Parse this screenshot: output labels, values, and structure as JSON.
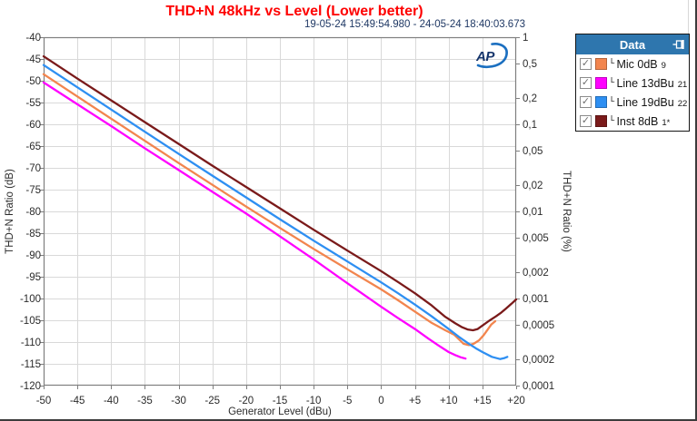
{
  "title": "THD+N 48kHz vs Level (Lower better)",
  "subtitle": "19-05-24 15:49:54.980 - 24-05-24 18:40:03.673",
  "logo_text": "AP",
  "colors": {
    "title": "#fe0000",
    "subtitle": "#1f3864",
    "grid": "#d9d9d9",
    "plot_border": "#7f7f7f",
    "tick_text": "#2b2b2b",
    "legend_header_bg": "#2e76ae",
    "logo_swoosh": "#1b6fc0",
    "logo_text": "#16356b"
  },
  "legend": {
    "header": "Data",
    "items": [
      {
        "channel": "L",
        "label": "Mic 0dB",
        "suffix": "9",
        "color": "#f2854e",
        "checked": true
      },
      {
        "channel": "L",
        "label": "Line 13dBu",
        "suffix": "21",
        "color": "#ff00ff",
        "checked": true
      },
      {
        "channel": "L",
        "label": "Line 19dBu",
        "suffix": "22",
        "color": "#2e8ff2",
        "checked": true
      },
      {
        "channel": "L",
        "label": "Inst 8dB",
        "suffix": "1*",
        "color": "#7a1a1a",
        "checked": true
      }
    ]
  },
  "chart_data": {
    "type": "line",
    "title": "THD+N 48kHz vs Level (Lower better)",
    "subtitle": "19-05-24 15:49:54.980 - 24-05-24 18:40:03.673",
    "xlabel": "Generator Level (dBu)",
    "ylabel_left": "THD+N Ratio (dB)",
    "ylabel_right": "THD+N Ratio (%)",
    "xlim": [
      -50,
      20
    ],
    "ylim_left": [
      -120,
      -40
    ],
    "grid": true,
    "legend_position": "right",
    "x_ticks": [
      -50,
      -45,
      -40,
      -35,
      -30,
      -25,
      -20,
      -15,
      -10,
      -5,
      0,
      5,
      10,
      15,
      20
    ],
    "x_tick_labels": [
      "-50",
      "-45",
      "-40",
      "-35",
      "-30",
      "-25",
      "-20",
      "-15",
      "-10",
      "-5",
      "0",
      "+5",
      "+10",
      "+15",
      "+20"
    ],
    "y_left_ticks": [
      -40,
      -45,
      -50,
      -55,
      -60,
      -65,
      -70,
      -75,
      -80,
      -85,
      -90,
      -95,
      -100,
      -105,
      -110,
      -115,
      -120
    ],
    "y_left_tick_labels": [
      "-40",
      "-45",
      "-50",
      "-55",
      "-60",
      "-65",
      "-70",
      "-75",
      "-80",
      "-85",
      "-90",
      "-95",
      "-100",
      "-105",
      "-110",
      "-115",
      "-120"
    ],
    "y_right_ticks": [
      {
        "label": "1",
        "percent": 1
      },
      {
        "label": "0,5",
        "percent": 0.5
      },
      {
        "label": "0,2",
        "percent": 0.2
      },
      {
        "label": "0,1",
        "percent": 0.1
      },
      {
        "label": "0,05",
        "percent": 0.05
      },
      {
        "label": "0,02",
        "percent": 0.02
      },
      {
        "label": "0,01",
        "percent": 0.01
      },
      {
        "label": "0,005",
        "percent": 0.005
      },
      {
        "label": "0,002",
        "percent": 0.002
      },
      {
        "label": "0,001",
        "percent": 0.001
      },
      {
        "label": "0,0005",
        "percent": 0.0005
      },
      {
        "label": "0,0002",
        "percent": 0.0002
      },
      {
        "label": "0,0001",
        "percent": 0.0001
      }
    ],
    "series": [
      {
        "name": "Mic 0dB",
        "channel": "L",
        "color": "#f2854e",
        "points": [
          [
            -50,
            -48.5
          ],
          [
            -45,
            -53.6
          ],
          [
            -40,
            -58.7
          ],
          [
            -35,
            -63.8
          ],
          [
            -30,
            -68.9
          ],
          [
            -25,
            -73.9
          ],
          [
            -20,
            -78.9
          ],
          [
            -15,
            -83.8
          ],
          [
            -10,
            -88.6
          ],
          [
            -5,
            -93.3
          ],
          [
            0,
            -97.9
          ],
          [
            2.5,
            -100.4
          ],
          [
            5,
            -103.0
          ],
          [
            7.5,
            -105.6
          ],
          [
            9.5,
            -107.3
          ],
          [
            10.8,
            -108.3
          ],
          [
            12.2,
            -110.4
          ],
          [
            13,
            -110.7
          ],
          [
            13.7,
            -110.4
          ],
          [
            14.5,
            -109.6
          ],
          [
            15.2,
            -108.4
          ],
          [
            15.8,
            -107.1
          ],
          [
            16.3,
            -106.0
          ],
          [
            16.9,
            -105.2
          ]
        ]
      },
      {
        "name": "Line 13dBu",
        "channel": "L",
        "color": "#ff00ff",
        "points": [
          [
            -50,
            -50.4
          ],
          [
            -45,
            -55.4
          ],
          [
            -40,
            -60.4
          ],
          [
            -35,
            -65.5
          ],
          [
            -30,
            -70.5
          ],
          [
            -25,
            -75.5
          ],
          [
            -20,
            -80.5
          ],
          [
            -15,
            -85.7
          ],
          [
            -10,
            -91.0
          ],
          [
            -5,
            -96.5
          ],
          [
            0,
            -101.9
          ],
          [
            2.5,
            -104.5
          ],
          [
            5,
            -107.0
          ],
          [
            7,
            -109.2
          ],
          [
            8.5,
            -110.8
          ],
          [
            10,
            -112.3
          ],
          [
            11,
            -113.0
          ],
          [
            11.8,
            -113.5
          ],
          [
            12.5,
            -113.8
          ]
        ]
      },
      {
        "name": "Line 19dBu",
        "channel": "L",
        "color": "#2e8ff2",
        "points": [
          [
            -50,
            -46.4
          ],
          [
            -45,
            -51.5
          ],
          [
            -40,
            -56.6
          ],
          [
            -35,
            -61.7
          ],
          [
            -30,
            -66.8
          ],
          [
            -25,
            -71.8
          ],
          [
            -20,
            -76.8
          ],
          [
            -15,
            -81.8
          ],
          [
            -10,
            -86.7
          ],
          [
            -5,
            -91.5
          ],
          [
            0,
            -96.3
          ],
          [
            2.5,
            -98.8
          ],
          [
            5,
            -101.4
          ],
          [
            7.5,
            -104.1
          ],
          [
            10,
            -107.0
          ],
          [
            11.5,
            -108.8
          ],
          [
            12.9,
            -110.3
          ],
          [
            14,
            -111.4
          ],
          [
            15,
            -112.3
          ],
          [
            16.4,
            -113.4
          ],
          [
            17.6,
            -113.9
          ],
          [
            18.2,
            -113.7
          ],
          [
            18.7,
            -113.4
          ]
        ]
      },
      {
        "name": "Inst 8dB",
        "channel": "L",
        "color": "#7a1a1a",
        "points": [
          [
            -50,
            -44.4
          ],
          [
            -45,
            -49.5
          ],
          [
            -40,
            -54.5
          ],
          [
            -35,
            -59.5
          ],
          [
            -30,
            -64.5
          ],
          [
            -25,
            -69.5
          ],
          [
            -20,
            -74.4
          ],
          [
            -15,
            -79.3
          ],
          [
            -10,
            -84.2
          ],
          [
            -5,
            -89.0
          ],
          [
            0,
            -93.7
          ],
          [
            2.5,
            -96.2
          ],
          [
            5,
            -98.8
          ],
          [
            7.5,
            -101.6
          ],
          [
            9.5,
            -104.2
          ],
          [
            11,
            -105.7
          ],
          [
            12,
            -106.6
          ],
          [
            12.8,
            -107.1
          ],
          [
            13.6,
            -107.3
          ],
          [
            14.3,
            -107.0
          ],
          [
            15,
            -106.2
          ],
          [
            16,
            -105.1
          ],
          [
            17,
            -104.1
          ],
          [
            17.8,
            -103.2
          ],
          [
            18.5,
            -102.3
          ],
          [
            19.3,
            -101.2
          ],
          [
            20,
            -100.2
          ]
        ]
      }
    ]
  }
}
